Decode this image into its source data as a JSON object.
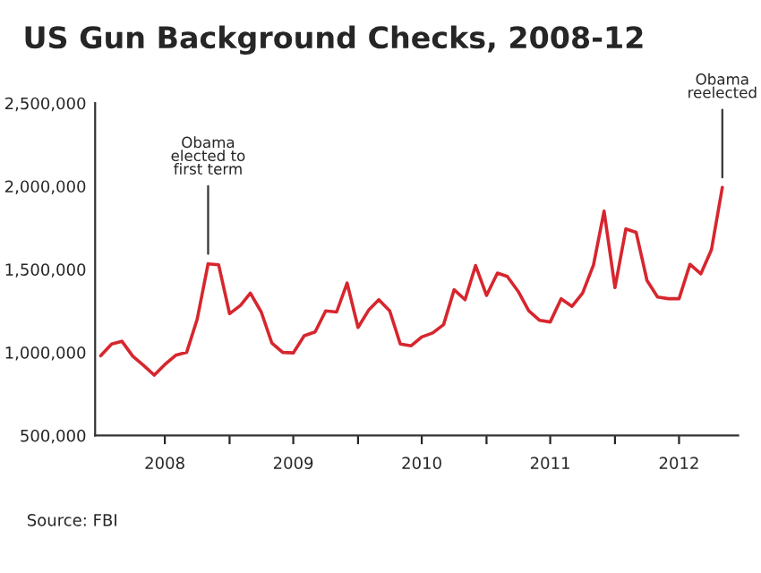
{
  "chart_data": {
    "type": "line",
    "title": "US Gun Background Checks, 2008-12",
    "x": [
      "2008-01",
      "2008-02",
      "2008-03",
      "2008-04",
      "2008-05",
      "2008-06",
      "2008-07",
      "2008-08",
      "2008-09",
      "2008-10",
      "2008-11",
      "2008-12",
      "2009-01",
      "2009-02",
      "2009-03",
      "2009-04",
      "2009-05",
      "2009-06",
      "2009-07",
      "2009-08",
      "2009-09",
      "2009-10",
      "2009-11",
      "2009-12",
      "2010-01",
      "2010-02",
      "2010-03",
      "2010-04",
      "2010-05",
      "2010-06",
      "2010-07",
      "2010-08",
      "2010-09",
      "2010-10",
      "2010-11",
      "2010-12",
      "2011-01",
      "2011-02",
      "2011-03",
      "2011-04",
      "2011-05",
      "2011-06",
      "2011-07",
      "2011-08",
      "2011-09",
      "2011-10",
      "2011-11",
      "2011-12",
      "2012-01",
      "2012-02",
      "2012-03",
      "2012-04",
      "2012-05",
      "2012-06",
      "2012-07",
      "2012-08",
      "2012-09",
      "2012-10",
      "2012-11"
    ],
    "series": [
      {
        "color": "#d7262e",
        "values": [
          980000,
          1050000,
          1067000,
          977000,
          923000,
          863000,
          927000,
          983000,
          1000000,
          1200000,
          1533000,
          1527000,
          1233000,
          1283000,
          1357000,
          1243000,
          1057000,
          1000000,
          997000,
          1100000,
          1123000,
          1250000,
          1243000,
          1417000,
          1150000,
          1257000,
          1317000,
          1250000,
          1050000,
          1040000,
          1093000,
          1117000,
          1167000,
          1377000,
          1317000,
          1523000,
          1343000,
          1477000,
          1457000,
          1367000,
          1250000,
          1193000,
          1183000,
          1323000,
          1277000,
          1357000,
          1527000,
          1850000,
          1390000,
          1743000,
          1723000,
          1433000,
          1333000,
          1323000,
          1323000,
          1530000,
          1473000,
          1617000,
          1993000
        ]
      }
    ],
    "xlim": [
      "2007-12-16",
      "2012-12-16"
    ],
    "xticks": [
      {
        "value": "2008-07-01",
        "label": "2008"
      },
      {
        "value": "2009-07-01",
        "label": "2009"
      },
      {
        "value": "2010-07-01",
        "label": "2010"
      },
      {
        "value": "2011-07-01",
        "label": "2011"
      },
      {
        "value": "2012-07-01",
        "label": "2012"
      },
      {
        "value": "2009-01-01",
        "label": null
      },
      {
        "value": "2010-01-01",
        "label": null
      },
      {
        "value": "2011-01-01",
        "label": null
      },
      {
        "value": "2012-01-01",
        "label": null
      }
    ],
    "ylim": [
      500000,
      2500000
    ],
    "yticks": [
      {
        "value": 500000,
        "label": "500,000"
      },
      {
        "value": 1000000,
        "label": "1,000,000"
      },
      {
        "value": 1500000,
        "label": "1,500,000"
      },
      {
        "value": 2000000,
        "label": "2,000,000"
      },
      {
        "value": 2500000,
        "label": "2,500,000"
      }
    ],
    "annotations": [
      {
        "text": "Obama\nelected to\nfirst term",
        "x": "2008-11",
        "y": 1533000
      },
      {
        "text": "Obama\nreelected",
        "x": "2012-11",
        "y": 1993000
      },
      "Source: FBI"
    ]
  }
}
